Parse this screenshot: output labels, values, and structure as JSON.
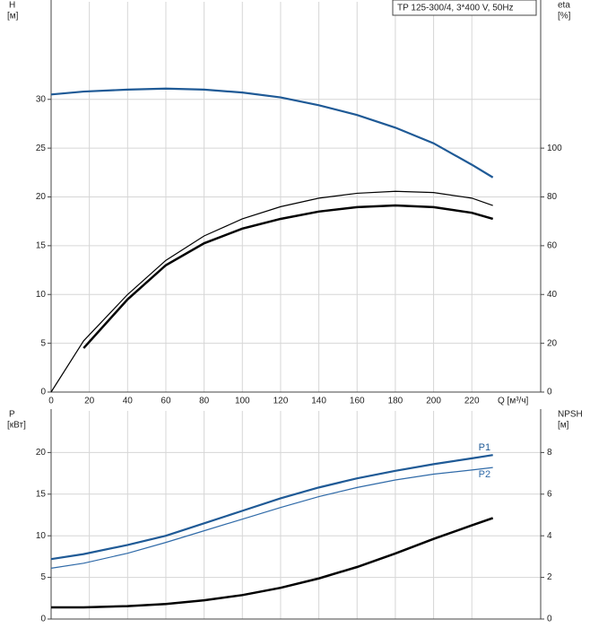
{
  "chart_data": [
    {
      "type": "line",
      "title": "TP 125-300/4, 3*400 V, 50Hz",
      "ylabel": "H",
      "yunit": "[м]",
      "y2label": "eta",
      "y2unit": "[%]",
      "xlabel": "Q [м³/ч]",
      "xlim": [
        0,
        256
      ],
      "xticks": [
        0,
        20,
        40,
        60,
        80,
        100,
        120,
        140,
        160,
        180,
        200,
        220
      ],
      "ylim": [
        0,
        40
      ],
      "yticks": [
        0,
        5,
        10,
        15,
        20,
        25,
        30
      ],
      "y2lim": [
        0,
        160
      ],
      "y2ticks": [
        0,
        20,
        40,
        60,
        80,
        100
      ],
      "grid": true,
      "series": [
        {
          "color": "#1f5a96",
          "width": 2.2,
          "x": [
            0,
            17,
            40,
            60,
            80,
            100,
            120,
            140,
            160,
            180,
            200,
            220,
            231
          ],
          "values": [
            30.5,
            30.8,
            31.0,
            31.1,
            31.0,
            30.7,
            30.2,
            29.4,
            28.4,
            27.1,
            25.5,
            23.3,
            22.0
          ]
        },
        {
          "color": "#000000",
          "width": 1.2,
          "axis": "y2",
          "x": [
            0,
            17,
            40,
            60,
            80,
            100,
            120,
            140,
            160,
            180,
            200,
            220,
            231
          ],
          "values": [
            0,
            21,
            40,
            54,
            64,
            71,
            76,
            79.5,
            81.5,
            82.3,
            81.8,
            79.5,
            76.5
          ]
        },
        {
          "color": "#000000",
          "width": 2.5,
          "axis": "y2",
          "x": [
            17,
            40,
            60,
            80,
            100,
            120,
            140,
            160,
            180,
            200,
            220,
            231
          ],
          "values": [
            18,
            38,
            52,
            61,
            67,
            71,
            74,
            75.8,
            76.5,
            75.8,
            73.5,
            71
          ]
        }
      ]
    },
    {
      "type": "line",
      "ylabel": "P",
      "yunit": "[кВт]",
      "y2label": "NPSH",
      "y2unit": "[м]",
      "xlim": [
        0,
        256
      ],
      "xticks": [
        0,
        20,
        40,
        60,
        80,
        100,
        120,
        140,
        160,
        180,
        200,
        220
      ],
      "ylim": [
        0,
        25
      ],
      "yticks": [
        0,
        5,
        10,
        15,
        20
      ],
      "y2lim": [
        0,
        10
      ],
      "y2ticks": [
        0,
        2,
        4,
        6,
        8
      ],
      "grid": true,
      "series": [
        {
          "name": "P1",
          "color": "#1f5a96",
          "width": 2.2,
          "x": [
            0,
            17,
            40,
            60,
            80,
            100,
            120,
            140,
            160,
            180,
            200,
            220,
            231
          ],
          "values": [
            7.2,
            7.8,
            8.9,
            10.0,
            11.5,
            13.0,
            14.5,
            15.8,
            16.9,
            17.8,
            18.6,
            19.3,
            19.7
          ]
        },
        {
          "name": "P2",
          "color": "#2f6aa8",
          "width": 1.2,
          "x": [
            0,
            17,
            40,
            60,
            80,
            100,
            120,
            140,
            160,
            180,
            200,
            220,
            231
          ],
          "values": [
            6.1,
            6.7,
            7.9,
            9.2,
            10.6,
            12.0,
            13.4,
            14.7,
            15.8,
            16.7,
            17.4,
            17.9,
            18.2
          ]
        },
        {
          "color": "#000000",
          "width": 2.5,
          "axis": "y2",
          "x": [
            0,
            17,
            40,
            60,
            80,
            100,
            120,
            140,
            160,
            180,
            200,
            220,
            231
          ],
          "values": [
            0.56,
            0.56,
            0.62,
            0.72,
            0.9,
            1.15,
            1.5,
            1.95,
            2.5,
            3.15,
            3.85,
            4.5,
            4.85
          ]
        }
      ]
    }
  ]
}
